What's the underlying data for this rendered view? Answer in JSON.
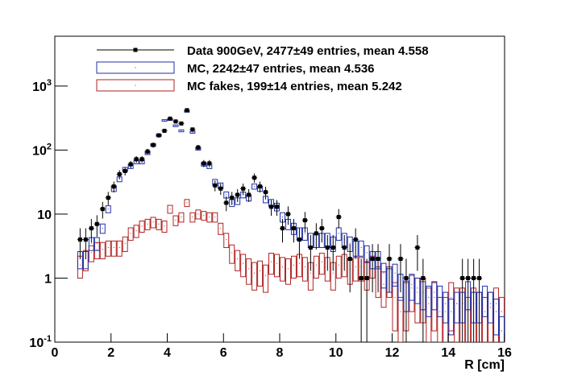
{
  "chart_data": {
    "type": "histogram-comparison",
    "xlabel": "R [cm]",
    "xlim": [
      0,
      16
    ],
    "xticks": [
      0,
      2,
      4,
      6,
      8,
      10,
      12,
      14,
      16
    ],
    "ylim": [
      0.1,
      6000
    ],
    "log_y": true,
    "yticks": [
      {
        "value": 0.1,
        "label": "10",
        "sup": "-1"
      },
      1,
      10,
      {
        "value": 100,
        "label": "10",
        "sup": "2"
      },
      {
        "value": 1000,
        "label": "10",
        "sup": "3"
      }
    ],
    "legend": "top",
    "xerr": 0.1,
    "x": [
      0.9,
      1.1,
      1.3,
      1.5,
      1.7,
      1.9,
      2.1,
      2.3,
      2.5,
      2.7,
      2.9,
      3.1,
      3.3,
      3.5,
      3.7,
      3.9,
      4.1,
      4.3,
      4.5,
      4.7,
      4.9,
      5.1,
      5.3,
      5.5,
      5.7,
      5.9,
      6.1,
      6.3,
      6.5,
      6.7,
      6.9,
      7.1,
      7.3,
      7.5,
      7.7,
      7.9,
      8.1,
      8.3,
      8.5,
      8.7,
      8.9,
      9.1,
      9.3,
      9.5,
      9.7,
      9.9,
      10.1,
      10.3,
      10.5,
      10.7,
      10.9,
      11.1,
      11.3,
      11.5,
      11.7,
      11.9,
      12.1,
      12.3,
      12.5,
      12.7,
      12.9,
      13.1,
      13.3,
      13.5,
      13.7,
      13.9,
      14.1,
      14.3,
      14.5,
      14.7,
      14.9,
      15.1,
      15.3,
      15.5,
      15.7,
      15.9
    ],
    "series": [
      {
        "name": "MC fakes, 199±14 entries, mean 5.242",
        "style": "box",
        "color": "#b22222",
        "values": [
          1.6,
          2,
          2.5,
          2.8,
          2.8,
          3,
          3,
          3,
          3.5,
          5,
          5.5,
          6.5,
          7,
          7.5,
          7,
          6.5,
          12,
          8,
          9,
          15,
          9,
          10,
          9.5,
          9,
          9,
          6,
          4,
          2.5,
          2,
          1.7,
          1.4,
          1.2,
          1.3,
          1.1,
          1.8,
          1.7,
          1.5,
          1.4,
          1.6,
          1.7,
          1.5,
          1.2,
          1.6,
          1.8,
          1.5,
          1.2,
          1.6,
          1.7,
          1.4,
          1.5,
          1.5,
          1.2,
          1.6,
          1,
          0.8,
          1,
          0.5,
          0.3,
          0.5,
          0.7,
          0.6,
          0.6,
          0.4,
          0.5,
          0.3,
          0.3,
          0.5,
          0.4,
          0.4,
          0.3,
          0.4,
          0.35,
          0.3,
          0.35,
          0.4,
          0.3
        ],
        "errors": [
          0.6,
          0.7,
          0.7,
          0.8,
          0.8,
          0.8,
          0.8,
          0.8,
          0.9,
          1.1,
          1.2,
          1.3,
          1.3,
          1.4,
          1.3,
          1.3,
          1.7,
          1.4,
          1.5,
          1.9,
          1.5,
          1.6,
          1.5,
          1.5,
          1.5,
          1.2,
          1,
          0.8,
          0.7,
          0.65,
          0.6,
          0.55,
          0.55,
          0.5,
          0.65,
          0.65,
          0.6,
          0.6,
          0.6,
          0.65,
          0.6,
          0.55,
          0.6,
          0.65,
          0.6,
          0.55,
          0.6,
          0.65,
          0.6,
          0.6,
          0.6,
          0.55,
          0.6,
          0.5,
          0.45,
          0.5,
          0.35,
          0.2,
          0.35,
          0.4,
          0.4,
          0.4,
          0.3,
          0.35,
          0.2,
          0.2,
          0.35,
          0.3,
          0.3,
          0.2,
          0.3,
          0.25,
          0.2,
          0.25,
          0.3,
          0.2
        ]
      },
      {
        "name": "MC, 2242±47 entries, mean 4.536",
        "style": "box",
        "color": "#1f2fa8",
        "values": [
          2,
          2,
          3.5,
          3.5,
          6,
          12,
          25,
          35,
          50,
          55,
          65,
          65,
          90,
          120,
          170,
          290,
          300,
          240,
          200,
          400,
          190,
          105,
          60,
          55,
          32,
          28,
          20,
          15,
          16,
          20,
          18,
          27,
          25,
          17,
          15,
          13,
          9,
          7,
          6,
          5,
          5,
          4,
          4,
          4,
          4,
          3.5,
          5,
          4,
          3.5,
          3,
          3,
          2.5,
          2,
          2,
          1.2,
          1,
          1.2,
          0.8,
          0.6,
          0.8,
          0.7,
          0.6,
          0.5,
          0.6,
          0.5,
          0.4,
          0.3,
          0.4,
          0.4,
          0.6,
          0.4,
          0.4,
          0.5,
          0.4,
          0.3,
          0.15
        ],
        "errors": [
          0.6,
          0.6,
          0.8,
          0.8,
          1,
          1.5,
          2.5,
          3,
          3.5,
          3.5,
          4,
          4,
          5,
          5.5,
          6.5,
          8.5,
          8.5,
          7.5,
          7,
          9.5,
          6.5,
          5,
          3.8,
          3.6,
          2.8,
          2.6,
          2.2,
          1.9,
          1.9,
          2.1,
          2,
          2.5,
          2.4,
          2,
          1.9,
          1.8,
          1.5,
          1.3,
          1.2,
          1.1,
          1.1,
          1,
          1,
          1,
          1,
          0.9,
          1.1,
          1,
          0.9,
          0.8,
          0.8,
          0.7,
          0.6,
          0.6,
          0.5,
          0.4,
          0.45,
          0.35,
          0.3,
          0.35,
          0.3,
          0.28,
          0.25,
          0.28,
          0.25,
          0.2,
          0.17,
          0.2,
          0.2,
          0.28,
          0.2,
          0.2,
          0.25,
          0.2,
          0.17,
          0.1
        ]
      },
      {
        "name": "Data 900GeV, 2477±49 entries, mean 4.558",
        "style": "point",
        "color": "#000000",
        "values": [
          4,
          4,
          6,
          7,
          12,
          18,
          27,
          42,
          47,
          60,
          72,
          72,
          95,
          120,
          170,
          200,
          310,
          280,
          260,
          420,
          210,
          110,
          62,
          62,
          28,
          25,
          15,
          18,
          20,
          25,
          20,
          37,
          27,
          22,
          13,
          13,
          6,
          10,
          6,
          4,
          8,
          3,
          5,
          6,
          3,
          3,
          9,
          3,
          2,
          4,
          1,
          1,
          2,
          2,
          null,
          2,
          null,
          2,
          1,
          null,
          3,
          1,
          null,
          null,
          null,
          null,
          null,
          null,
          1,
          1,
          1,
          1,
          null,
          null,
          null,
          null
        ],
        "errors": [
          2,
          2,
          2.4,
          2.6,
          3.5,
          4.2,
          5.2,
          6.5,
          6.9,
          7.7,
          8.5,
          8.5,
          9.7,
          11,
          13,
          14,
          17.6,
          16.7,
          16,
          20.5,
          14.5,
          10.5,
          7.9,
          7.9,
          5.3,
          5,
          3.9,
          4.2,
          4.5,
          5,
          4.5,
          6.1,
          5.2,
          4.7,
          3.6,
          3.6,
          2.4,
          3.2,
          2.4,
          2,
          2.8,
          1.7,
          2.2,
          2.4,
          1.7,
          1.7,
          3,
          1.7,
          1.4,
          2,
          1,
          1,
          1.4,
          1.4,
          null,
          1.4,
          null,
          1.4,
          1,
          null,
          1.7,
          1,
          null,
          null,
          null,
          null,
          null,
          null,
          1,
          1,
          1,
          1,
          null,
          null,
          null,
          null
        ]
      }
    ]
  }
}
